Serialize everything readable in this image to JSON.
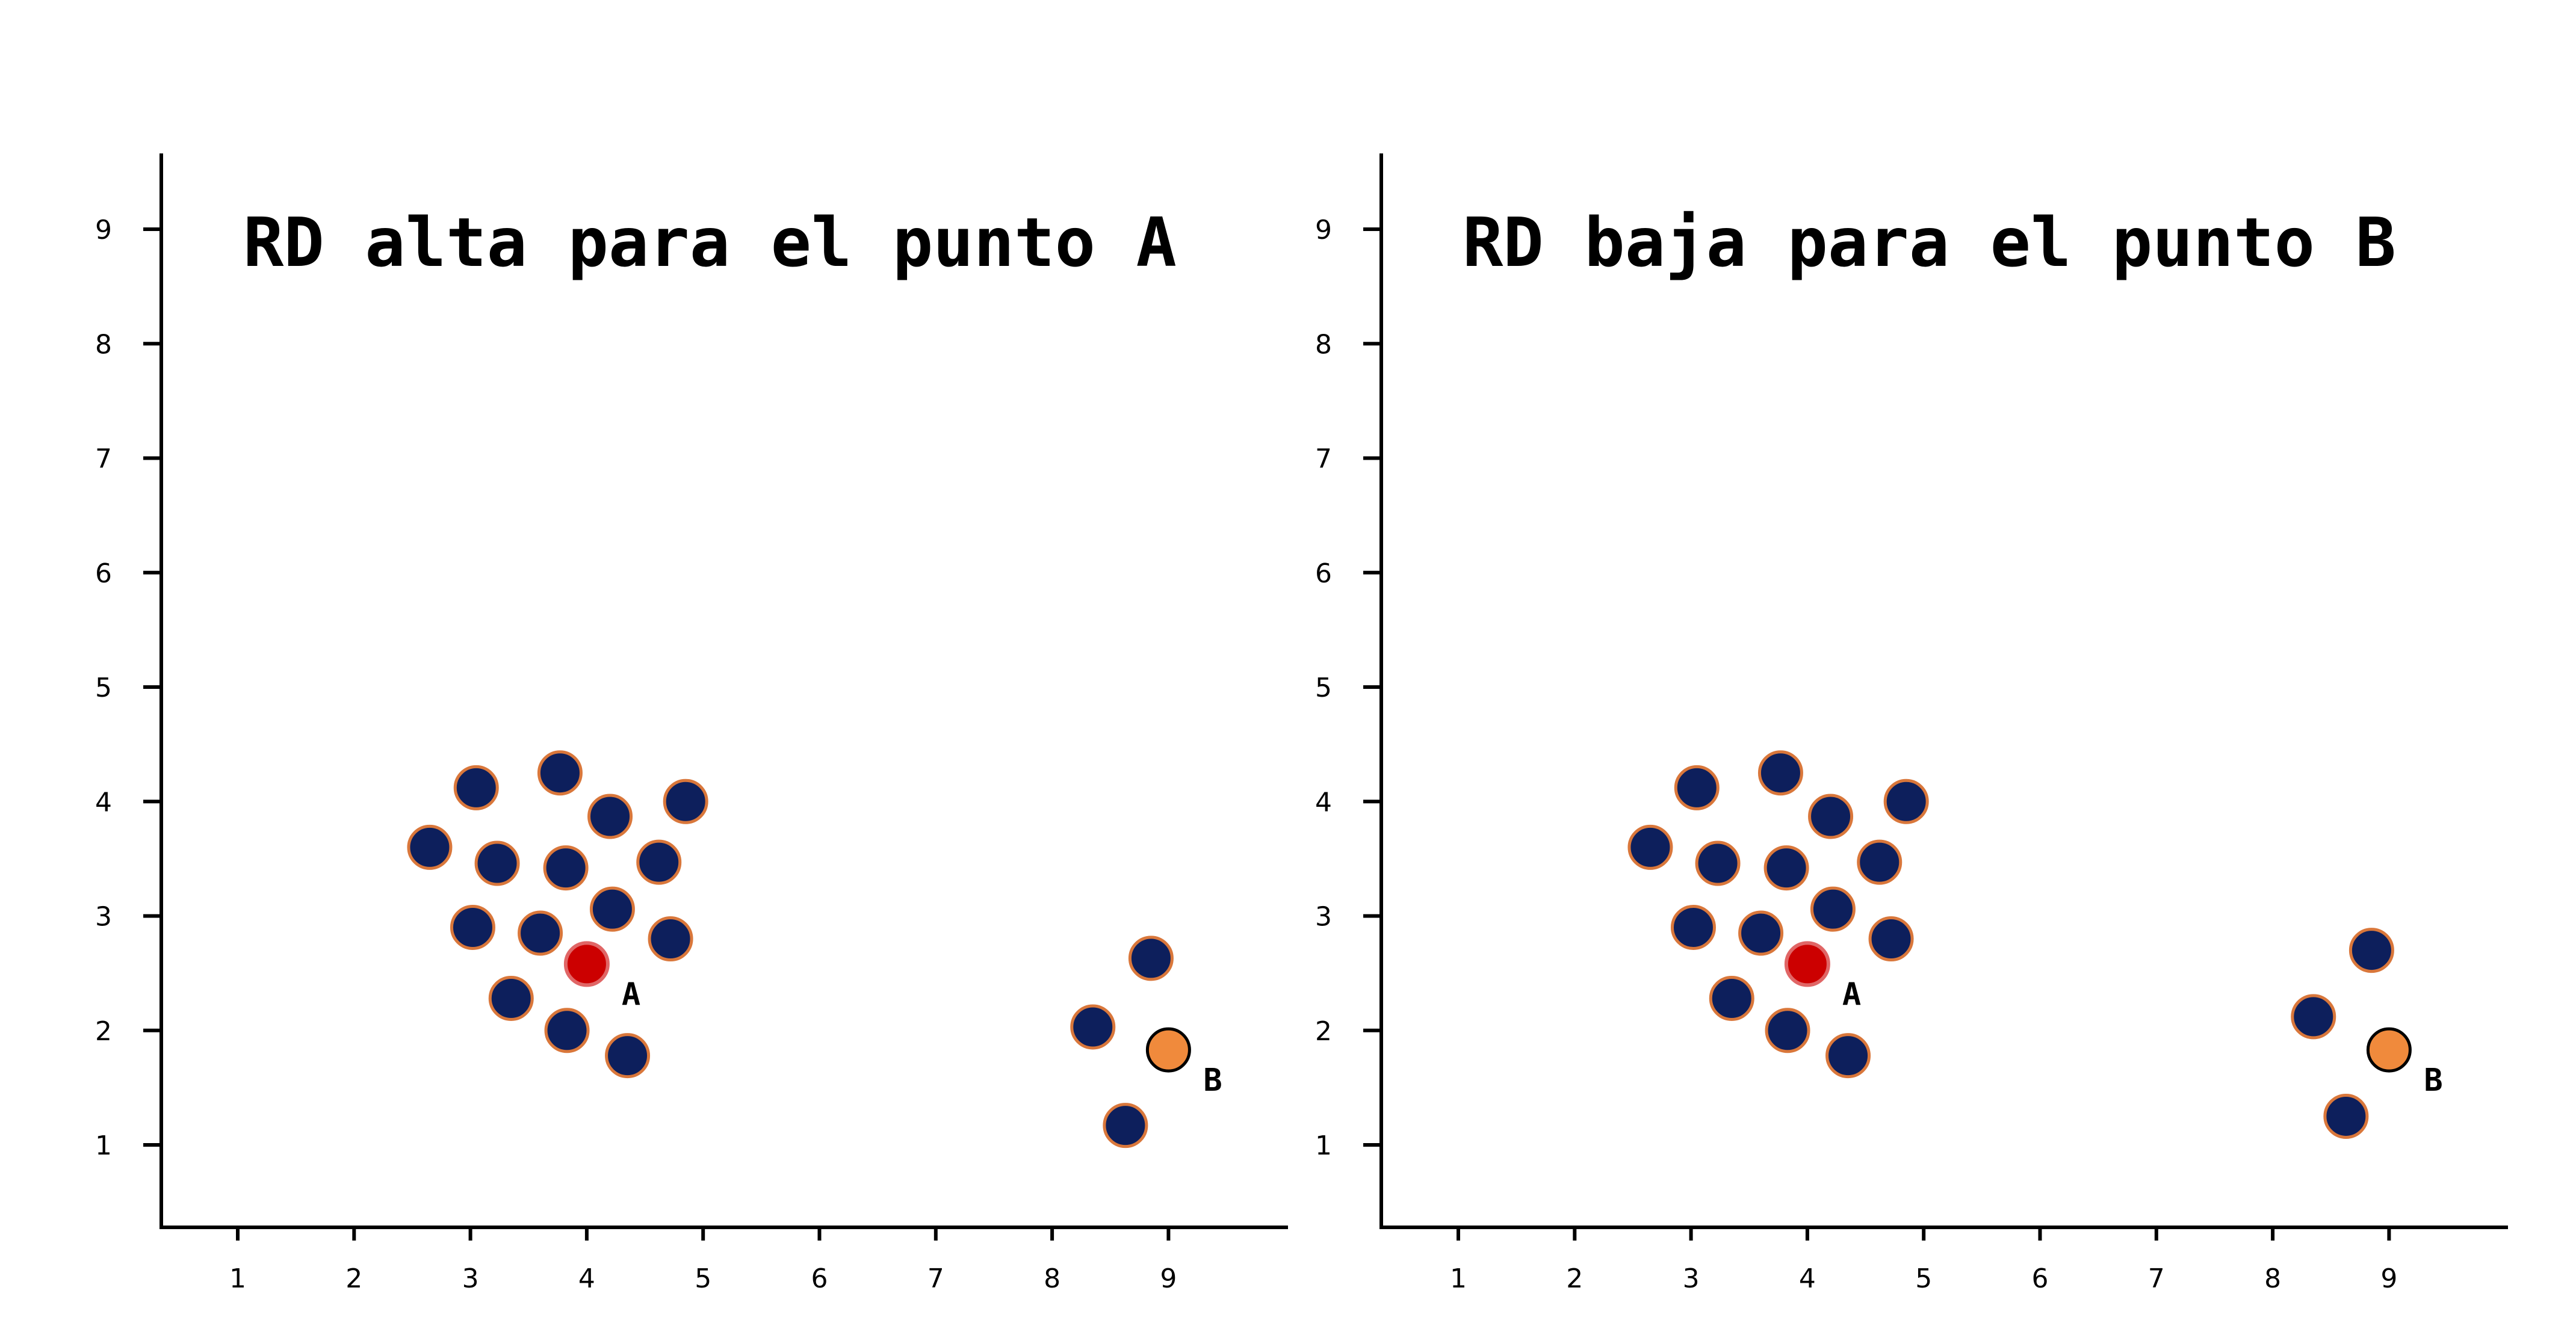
{
  "chart_data": [
    {
      "type": "scatter",
      "title": "RD alta para el punto A",
      "xlabel": "",
      "ylabel": "",
      "xlim": [
        0.3,
        10.2
      ],
      "ylim": [
        0.3,
        9.6
      ],
      "xticks": [
        1,
        2,
        3,
        4,
        5,
        6,
        7,
        8,
        9
      ],
      "yticks": [
        1,
        2,
        3,
        4,
        5,
        6,
        7,
        8,
        9
      ],
      "grid": false,
      "colors": {
        "cluster_fill": "#0d1f5c",
        "cluster_edge": "#d9773b",
        "point_a_fill": "#cc0000",
        "point_a_edge": "#e06666",
        "point_b_fill": "#f08a3c",
        "point_b_edge": "#000000"
      },
      "cluster_points": [
        {
          "x": 3.05,
          "y": 4.12
        },
        {
          "x": 3.77,
          "y": 4.25
        },
        {
          "x": 4.2,
          "y": 3.87
        },
        {
          "x": 4.85,
          "y": 4.0
        },
        {
          "x": 2.65,
          "y": 3.6
        },
        {
          "x": 3.23,
          "y": 3.46
        },
        {
          "x": 3.82,
          "y": 3.42
        },
        {
          "x": 4.62,
          "y": 3.47
        },
        {
          "x": 4.22,
          "y": 3.06
        },
        {
          "x": 3.02,
          "y": 2.9
        },
        {
          "x": 3.6,
          "y": 2.85
        },
        {
          "x": 4.72,
          "y": 2.8
        },
        {
          "x": 3.35,
          "y": 2.28
        },
        {
          "x": 3.83,
          "y": 2.0
        },
        {
          "x": 4.35,
          "y": 1.78
        },
        {
          "x": 8.85,
          "y": 2.63
        },
        {
          "x": 8.35,
          "y": 2.03
        },
        {
          "x": 8.63,
          "y": 1.17
        }
      ],
      "highlight_points": [
        {
          "name": "A",
          "x": 4.0,
          "y": 2.58,
          "label": "A"
        },
        {
          "name": "B",
          "x": 9.0,
          "y": 1.83,
          "label": "B"
        }
      ]
    },
    {
      "type": "scatter",
      "title": "RD baja para el punto B",
      "xlabel": "",
      "ylabel": "",
      "xlim": [
        0.3,
        10.2
      ],
      "ylim": [
        0.3,
        9.6
      ],
      "xticks": [
        1,
        2,
        3,
        4,
        5,
        6,
        7,
        8,
        9
      ],
      "yticks": [
        1,
        2,
        3,
        4,
        5,
        6,
        7,
        8,
        9
      ],
      "grid": false,
      "colors": {
        "cluster_fill": "#0d1f5c",
        "cluster_edge": "#d9773b",
        "point_a_fill": "#cc0000",
        "point_a_edge": "#e06666",
        "point_b_fill": "#f08a3c",
        "point_b_edge": "#000000"
      },
      "cluster_points": [
        {
          "x": 3.05,
          "y": 4.12
        },
        {
          "x": 3.77,
          "y": 4.25
        },
        {
          "x": 4.2,
          "y": 3.87
        },
        {
          "x": 4.85,
          "y": 4.0
        },
        {
          "x": 2.65,
          "y": 3.6
        },
        {
          "x": 3.23,
          "y": 3.46
        },
        {
          "x": 3.82,
          "y": 3.42
        },
        {
          "x": 4.62,
          "y": 3.47
        },
        {
          "x": 4.22,
          "y": 3.06
        },
        {
          "x": 3.02,
          "y": 2.9
        },
        {
          "x": 3.6,
          "y": 2.85
        },
        {
          "x": 4.72,
          "y": 2.8
        },
        {
          "x": 3.35,
          "y": 2.28
        },
        {
          "x": 3.83,
          "y": 2.0
        },
        {
          "x": 4.35,
          "y": 1.78
        },
        {
          "x": 8.85,
          "y": 2.7
        },
        {
          "x": 8.35,
          "y": 2.12
        },
        {
          "x": 8.63,
          "y": 1.25
        }
      ],
      "highlight_points": [
        {
          "name": "A",
          "x": 4.0,
          "y": 2.58,
          "label": "A"
        },
        {
          "name": "B",
          "x": 9.0,
          "y": 1.83,
          "label": "B"
        }
      ]
    }
  ]
}
